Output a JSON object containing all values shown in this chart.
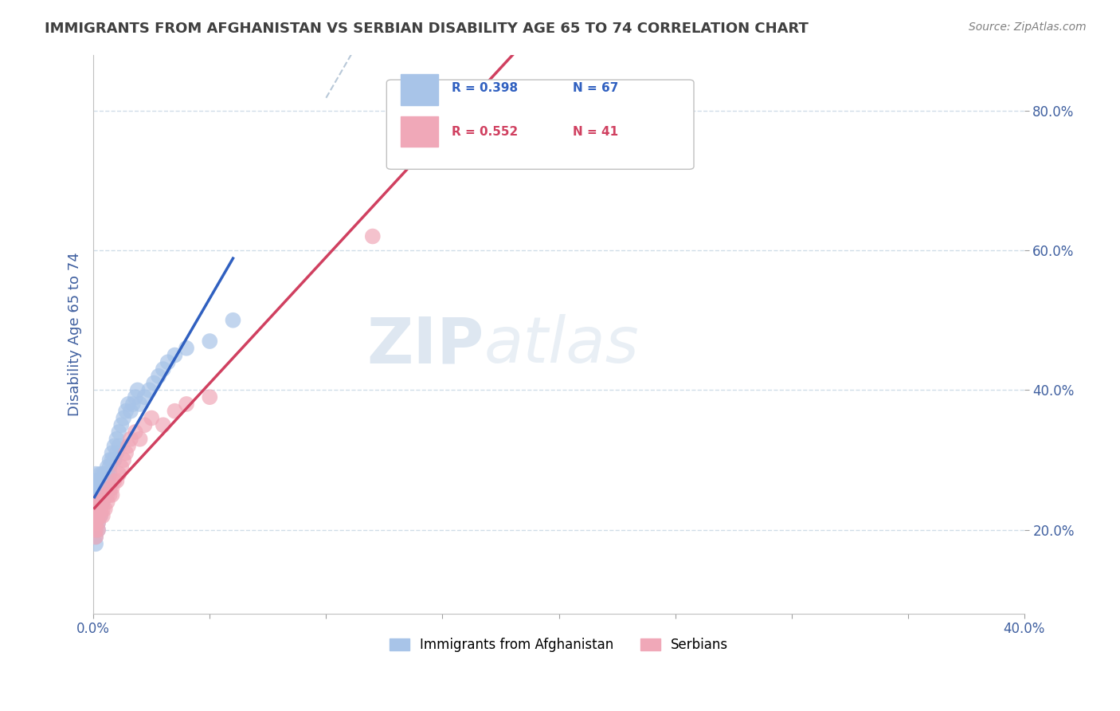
{
  "title": "IMMIGRANTS FROM AFGHANISTAN VS SERBIAN DISABILITY AGE 65 TO 74 CORRELATION CHART",
  "source": "Source: ZipAtlas.com",
  "ylabel": "Disability Age 65 to 74",
  "xlim": [
    0.0,
    0.4
  ],
  "ylim": [
    0.08,
    0.88
  ],
  "x_ticks": [
    0.0,
    0.05,
    0.1,
    0.15,
    0.2,
    0.25,
    0.3,
    0.35,
    0.4
  ],
  "y_ticks": [
    0.2,
    0.4,
    0.6,
    0.8
  ],
  "y_tick_labels": [
    "20.0%",
    "40.0%",
    "60.0%",
    "80.0%"
  ],
  "afghanistan_color": "#a8c4e8",
  "serbia_color": "#f0a8b8",
  "afghanistan_line_color": "#3060c0",
  "serbia_line_color": "#d04060",
  "trend_line_dashed_color": "#b8c8d8",
  "watermark": "ZIPAtlas",
  "watermark_color": "#c8d8e8",
  "afghanistan_x": [
    0.001,
    0.001,
    0.001,
    0.001,
    0.001,
    0.001,
    0.001,
    0.001,
    0.001,
    0.001,
    0.002,
    0.002,
    0.002,
    0.002,
    0.002,
    0.002,
    0.002,
    0.002,
    0.003,
    0.003,
    0.003,
    0.003,
    0.003,
    0.003,
    0.004,
    0.004,
    0.004,
    0.004,
    0.004,
    0.005,
    0.005,
    0.005,
    0.005,
    0.006,
    0.006,
    0.006,
    0.007,
    0.007,
    0.007,
    0.008,
    0.008,
    0.009,
    0.009,
    0.01,
    0.01,
    0.011,
    0.011,
    0.012,
    0.013,
    0.014,
    0.015,
    0.016,
    0.017,
    0.018,
    0.019,
    0.02,
    0.022,
    0.024,
    0.026,
    0.028,
    0.03,
    0.032,
    0.035,
    0.04,
    0.05,
    0.06
  ],
  "afghanistan_y": [
    0.24,
    0.25,
    0.26,
    0.27,
    0.28,
    0.23,
    0.22,
    0.2,
    0.19,
    0.18,
    0.25,
    0.26,
    0.27,
    0.23,
    0.24,
    0.22,
    0.2,
    0.21,
    0.26,
    0.28,
    0.27,
    0.25,
    0.24,
    0.22,
    0.27,
    0.28,
    0.26,
    0.25,
    0.24,
    0.28,
    0.27,
    0.26,
    0.25,
    0.29,
    0.28,
    0.27,
    0.3,
    0.29,
    0.28,
    0.31,
    0.3,
    0.32,
    0.3,
    0.33,
    0.31,
    0.34,
    0.32,
    0.35,
    0.36,
    0.37,
    0.38,
    0.37,
    0.38,
    0.39,
    0.4,
    0.38,
    0.39,
    0.4,
    0.41,
    0.42,
    0.43,
    0.44,
    0.45,
    0.46,
    0.47,
    0.5
  ],
  "serbia_x": [
    0.001,
    0.001,
    0.001,
    0.001,
    0.001,
    0.001,
    0.002,
    0.002,
    0.002,
    0.002,
    0.003,
    0.003,
    0.003,
    0.004,
    0.004,
    0.004,
    0.005,
    0.005,
    0.006,
    0.006,
    0.007,
    0.007,
    0.008,
    0.008,
    0.009,
    0.01,
    0.011,
    0.012,
    0.013,
    0.014,
    0.015,
    0.016,
    0.018,
    0.02,
    0.022,
    0.025,
    0.03,
    0.035,
    0.04,
    0.05,
    0.12
  ],
  "serbia_y": [
    0.22,
    0.23,
    0.24,
    0.21,
    0.2,
    0.19,
    0.22,
    0.23,
    0.21,
    0.2,
    0.24,
    0.23,
    0.22,
    0.24,
    0.23,
    0.22,
    0.25,
    0.23,
    0.25,
    0.24,
    0.26,
    0.25,
    0.26,
    0.25,
    0.27,
    0.27,
    0.28,
    0.29,
    0.3,
    0.31,
    0.32,
    0.33,
    0.34,
    0.33,
    0.35,
    0.36,
    0.35,
    0.37,
    0.38,
    0.39,
    0.62
  ],
  "background_color": "#ffffff",
  "grid_color": "#d0dde8",
  "title_color": "#404040",
  "axis_color": "#4060a0"
}
